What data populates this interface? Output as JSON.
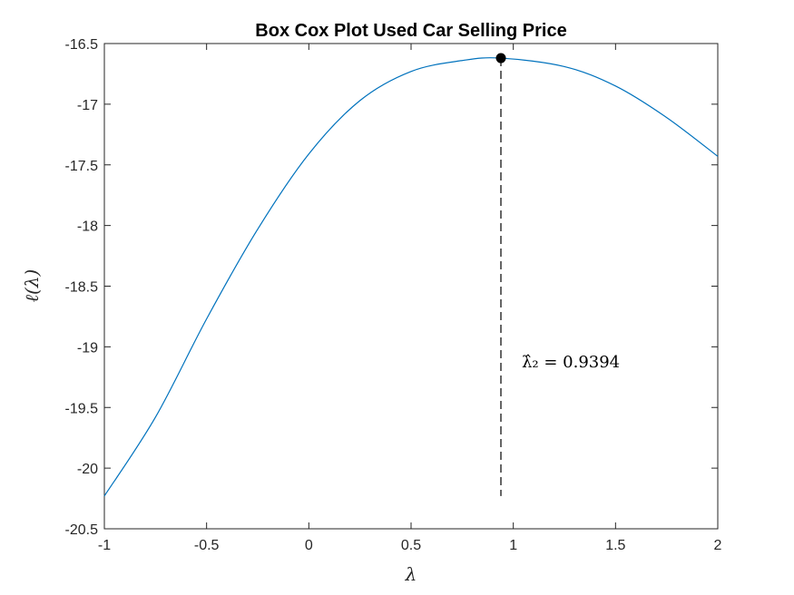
{
  "chart_data": {
    "type": "line",
    "title": "Box Cox Plot Used Car Selling Price",
    "xlabel": "λ",
    "ylabel": "ℓ(λ)",
    "xlim": [
      -1,
      2
    ],
    "ylim": [
      -20.5,
      -16.5
    ],
    "xticks": [
      -1,
      -0.5,
      0,
      0.5,
      1,
      1.5,
      2
    ],
    "xtick_labels": [
      "-1",
      "-0.5",
      "0",
      "0.5",
      "1",
      "1.5",
      "2"
    ],
    "yticks": [
      -16.5,
      -17,
      -17.5,
      -18,
      -18.5,
      -19,
      -19.5,
      -20,
      -20.5
    ],
    "ytick_labels": [
      "-16.5",
      "-17",
      "-17.5",
      "-18",
      "-18.5",
      "-19",
      "-19.5",
      "-20",
      "-20.5"
    ],
    "grid": false,
    "series": [
      {
        "color": "#0072BD",
        "x": [
          -1,
          -0.75,
          -0.5,
          -0.25,
          0,
          0.25,
          0.5,
          0.75,
          0.9394,
          1.25,
          1.5,
          1.75,
          2
        ],
        "y": [
          -20.23,
          -19.58,
          -18.77,
          -18.03,
          -17.41,
          -16.97,
          -16.73,
          -16.64,
          -16.62,
          -16.69,
          -16.85,
          -17.11,
          -17.43
        ]
      }
    ],
    "optimum": {
      "x": 0.9394,
      "y": -16.62,
      "label": "λ̂₂ = 0.9394",
      "marker_color": "#000000",
      "line_to_y": -20.23
    }
  }
}
